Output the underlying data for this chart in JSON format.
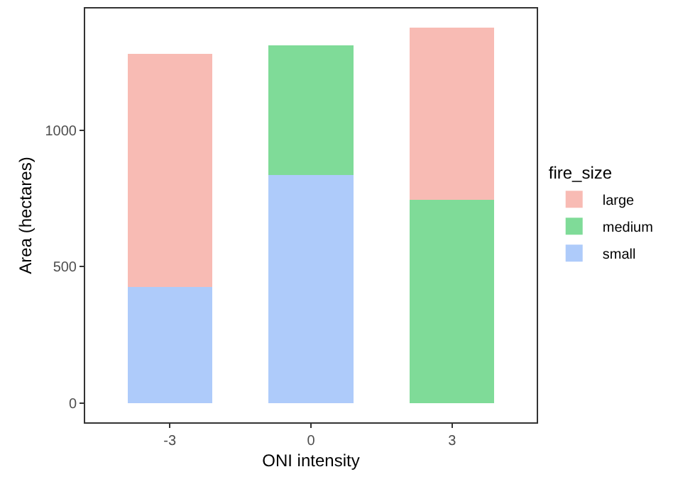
{
  "chart_data": {
    "type": "bar",
    "stacked": true,
    "xlabel": "ONI intensity",
    "ylabel": "Area (hectares)",
    "legend_title": "fire_size",
    "categories": [
      "-3",
      "0",
      "3"
    ],
    "series": [
      {
        "name": "small",
        "color": "#aecbfa",
        "values": [
          425,
          835,
          0
        ]
      },
      {
        "name": "medium",
        "color": "#7fdb98",
        "values": [
          0,
          475,
          745
        ]
      },
      {
        "name": "large",
        "color": "#f8bbb4",
        "values": [
          855,
          0,
          630
        ]
      }
    ],
    "ylim": [
      -70,
      1445
    ],
    "yticks": [
      0,
      500,
      1000
    ],
    "grid": false,
    "legend": "right"
  }
}
